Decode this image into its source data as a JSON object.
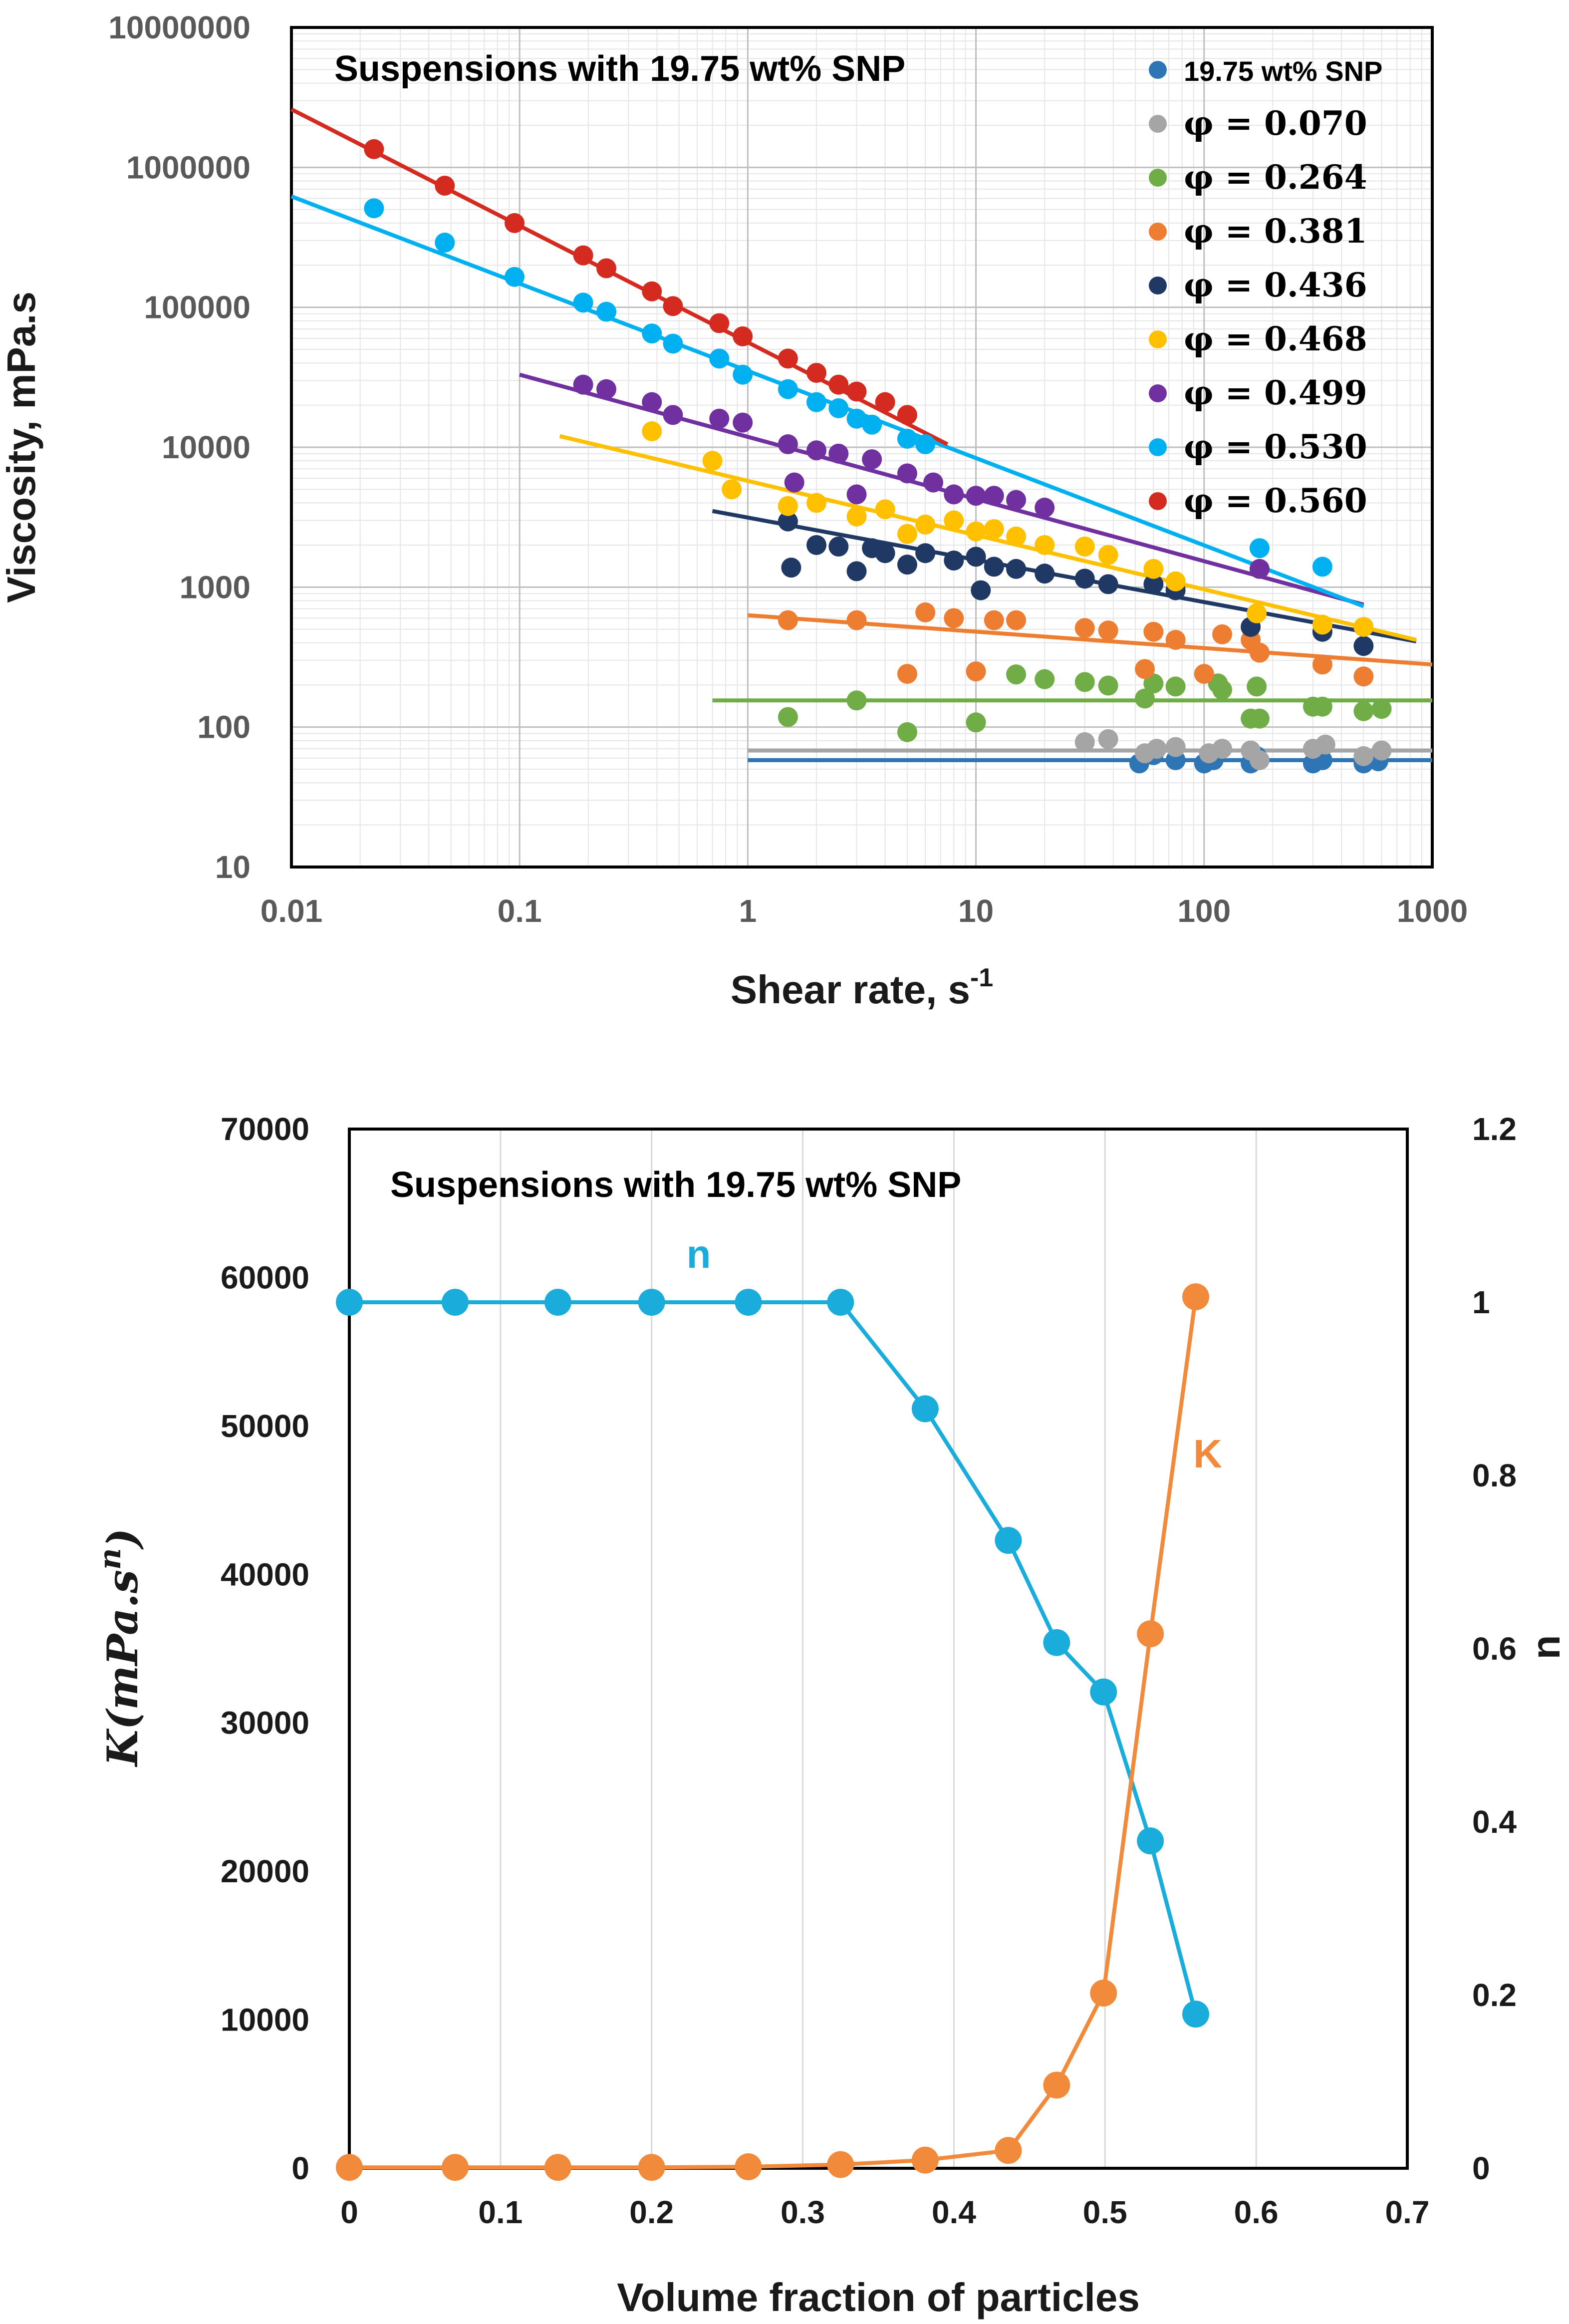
{
  "chart_data": [
    {
      "type": "scatter",
      "scale": "log-log",
      "title": "Suspensions with 19.75 wt% SNP",
      "xlabel": "Shear rate, s",
      "xlabel_sup": "-1",
      "ylabel": "Viscosity, mPa.s",
      "xlim": [
        0.01,
        1000
      ],
      "ylim": [
        10,
        10000000
      ],
      "x_ticks": [
        "0.01",
        "0.1",
        "1",
        "10",
        "100",
        "1000"
      ],
      "y_ticks": [
        "10",
        "100",
        "1000",
        "10000",
        "100000",
        "1000000",
        "10000000"
      ],
      "series": [
        {
          "name": "19.75 wt% SNP",
          "color": "#2E75B6",
          "fit": {
            "x": [
              1,
              1000
            ],
            "y": [
              58,
              58
            ]
          },
          "points": [
            [
              52,
              55
            ],
            [
              60,
              63
            ],
            [
              75,
              58
            ],
            [
              100,
              55
            ],
            [
              110,
              58
            ],
            [
              160,
              55
            ],
            [
              170,
              62
            ],
            [
              300,
              55
            ],
            [
              330,
              58
            ],
            [
              500,
              55
            ],
            [
              580,
              57
            ]
          ]
        },
        {
          "name": "φ = 0.070",
          "color": "#A5A5A5",
          "fit": {
            "x": [
              1,
              1000
            ],
            "y": [
              68,
              68
            ]
          },
          "points": [
            [
              30,
              78
            ],
            [
              38,
              82
            ],
            [
              55,
              65
            ],
            [
              62,
              70
            ],
            [
              75,
              72
            ],
            [
              105,
              65
            ],
            [
              120,
              70
            ],
            [
              160,
              68
            ],
            [
              175,
              58
            ],
            [
              300,
              70
            ],
            [
              340,
              75
            ],
            [
              500,
              62
            ],
            [
              600,
              68
            ]
          ]
        },
        {
          "name": "φ = 0.264",
          "color": "#70AD47",
          "fit": {
            "x": [
              0.7,
              1000
            ],
            "y": [
              155,
              155
            ]
          },
          "points": [
            [
              1.5,
              118
            ],
            [
              3,
              155
            ],
            [
              5,
              92
            ],
            [
              10,
              108
            ],
            [
              15,
              238
            ],
            [
              20,
              220
            ],
            [
              30,
              210
            ],
            [
              38,
              198
            ],
            [
              55,
              160
            ],
            [
              60,
              205
            ],
            [
              75,
              195
            ],
            [
              115,
              205
            ],
            [
              120,
              185
            ],
            [
              160,
              115
            ],
            [
              170,
              195
            ],
            [
              175,
              115
            ],
            [
              300,
              140
            ],
            [
              330,
              140
            ],
            [
              500,
              130
            ],
            [
              600,
              135
            ]
          ]
        },
        {
          "name": "φ = 0.381",
          "color": "#ED7D31",
          "fit": {
            "x": [
              1,
              1000
            ],
            "y": [
              630,
              280
            ]
          },
          "points": [
            [
              1.5,
              580
            ],
            [
              3,
              580
            ],
            [
              5,
              240
            ],
            [
              6,
              660
            ],
            [
              8,
              600
            ],
            [
              10,
              250
            ],
            [
              12,
              580
            ],
            [
              15,
              580
            ],
            [
              30,
              510
            ],
            [
              38,
              490
            ],
            [
              55,
              260
            ],
            [
              60,
              480
            ],
            [
              75,
              420
            ],
            [
              100,
              240
            ],
            [
              120,
              460
            ],
            [
              160,
              420
            ],
            [
              175,
              340
            ],
            [
              330,
              280
            ],
            [
              500,
              230
            ]
          ]
        },
        {
          "name": "φ = 0.436",
          "color": "#1F3864",
          "fit": {
            "x": [
              0.7,
              850
            ],
            "y": [
              3500,
              410
            ]
          },
          "points": [
            [
              1.5,
              2950
            ],
            [
              1.55,
              1380
            ],
            [
              2,
              2000
            ],
            [
              2.5,
              1950
            ],
            [
              3,
              1300
            ],
            [
              3.5,
              1900
            ],
            [
              4,
              1750
            ],
            [
              5,
              1450
            ],
            [
              6,
              1750
            ],
            [
              8,
              1550
            ],
            [
              10,
              1650
            ],
            [
              10.5,
              950
            ],
            [
              12,
              1400
            ],
            [
              15,
              1350
            ],
            [
              20,
              1250
            ],
            [
              30,
              1150
            ],
            [
              38,
              1050
            ],
            [
              60,
              1050
            ],
            [
              75,
              950
            ],
            [
              160,
              520
            ],
            [
              330,
              480
            ],
            [
              500,
              380
            ]
          ]
        },
        {
          "name": "φ = 0.468",
          "color": "#FFC000",
          "fit": {
            "x": [
              0.15,
              850
            ],
            "y": [
              12000,
              420
            ]
          },
          "points": [
            [
              0.38,
              13000
            ],
            [
              0.7,
              8000
            ],
            [
              0.85,
              5000
            ],
            [
              1.5,
              3800
            ],
            [
              2,
              4000
            ],
            [
              3,
              3200
            ],
            [
              4,
              3600
            ],
            [
              5,
              2400
            ],
            [
              6,
              2800
            ],
            [
              8,
              3000
            ],
            [
              10,
              2500
            ],
            [
              12,
              2600
            ],
            [
              15,
              2300
            ],
            [
              20,
              2000
            ],
            [
              30,
              1950
            ],
            [
              38,
              1700
            ],
            [
              60,
              1350
            ],
            [
              75,
              1100
            ],
            [
              170,
              650
            ],
            [
              330,
              540
            ],
            [
              500,
              520
            ]
          ]
        },
        {
          "name": "φ = 0.499",
          "color": "#7030A0",
          "fit": {
            "x": [
              0.1,
              500
            ],
            "y": [
              33000,
              750
            ]
          },
          "points": [
            [
              0.19,
              28000
            ],
            [
              0.24,
              26000
            ],
            [
              0.38,
              21000
            ],
            [
              0.47,
              17000
            ],
            [
              0.75,
              16000
            ],
            [
              0.95,
              15000
            ],
            [
              1.5,
              10500
            ],
            [
              1.6,
              5600
            ],
            [
              2,
              9500
            ],
            [
              2.5,
              9000
            ],
            [
              3,
              4600
            ],
            [
              3.5,
              8200
            ],
            [
              5,
              6500
            ],
            [
              6.5,
              5600
            ],
            [
              8,
              4600
            ],
            [
              10,
              4500
            ],
            [
              12,
              4500
            ],
            [
              15,
              4200
            ],
            [
              20,
              3700
            ],
            [
              175,
              1350
            ]
          ]
        },
        {
          "name": "φ = 0.530",
          "color": "#00B0F0",
          "fit": {
            "x": [
              0.01,
              500
            ],
            "y": [
              620000,
              730
            ]
          },
          "points": [
            [
              0.023,
              510000
            ],
            [
              0.047,
              290000
            ],
            [
              0.095,
              165000
            ],
            [
              0.19,
              108000
            ],
            [
              0.24,
              93000
            ],
            [
              0.38,
              65000
            ],
            [
              0.47,
              55000
            ],
            [
              0.75,
              43000
            ],
            [
              0.95,
              33000
            ],
            [
              1.5,
              26000
            ],
            [
              2,
              21000
            ],
            [
              2.5,
              19000
            ],
            [
              3,
              16000
            ],
            [
              3.5,
              14500
            ],
            [
              5,
              11500
            ],
            [
              6,
              10500
            ],
            [
              175,
              1900
            ],
            [
              330,
              1400
            ]
          ]
        },
        {
          "name": "φ = 0.560",
          "color": "#D52A20",
          "fit": {
            "x": [
              0.01,
              7.5
            ],
            "y": [
              2600000,
              10500
            ]
          },
          "points": [
            [
              0.023,
              1350000
            ],
            [
              0.047,
              740000
            ],
            [
              0.095,
              400000
            ],
            [
              0.19,
              235000
            ],
            [
              0.24,
              190000
            ],
            [
              0.38,
              130000
            ],
            [
              0.47,
              102000
            ],
            [
              0.75,
              77000
            ],
            [
              0.95,
              62000
            ],
            [
              1.5,
              43000
            ],
            [
              2,
              34000
            ],
            [
              2.5,
              28000
            ],
            [
              3,
              25000
            ],
            [
              4,
              21000
            ],
            [
              5,
              17000
            ]
          ]
        }
      ]
    },
    {
      "type": "line",
      "title": "Suspensions with 19.75 wt% SNP",
      "xlabel": "Volume fraction of particles",
      "ylabel_left_base": "K",
      "ylabel_left_paren": "(mPa.s",
      "ylabel_left_sup": "n",
      "ylabel_left_close": ")",
      "ylabel_right": "n",
      "xlim": [
        0,
        0.7
      ],
      "ylim_left": [
        0,
        70000
      ],
      "ylim_right": [
        0,
        1.2
      ],
      "x_ticks": [
        "0",
        "0.1",
        "0.2",
        "0.3",
        "0.4",
        "0.5",
        "0.6",
        "0.7"
      ],
      "y_ticks_left": [
        "0",
        "10000",
        "20000",
        "30000",
        "40000",
        "50000",
        "60000",
        "70000"
      ],
      "y_ticks_right": [
        "0",
        "0.2",
        "0.4",
        "0.6",
        "0.8",
        "1",
        "1.2"
      ],
      "x": [
        0,
        0.07,
        0.138,
        0.2,
        0.264,
        0.325,
        0.381,
        0.436,
        0.468,
        0.499,
        0.53,
        0.56
      ],
      "series": [
        {
          "name": "n",
          "axis": "right",
          "color": "#1AADDC",
          "values": [
            1,
            1,
            1,
            1,
            1,
            1,
            0.877,
            0.725,
            0.607,
            0.55,
            0.378,
            0.178
          ]
        },
        {
          "name": "K",
          "axis": "left",
          "color": "#F28A3B",
          "values": [
            60,
            60,
            60,
            60,
            100,
            250,
            550,
            1200,
            5600,
            11800,
            36000,
            58700
          ]
        }
      ],
      "annotations": [
        {
          "text": "n",
          "color": "#1AADDC"
        },
        {
          "text": "K",
          "color": "#F28A3B"
        }
      ]
    }
  ]
}
